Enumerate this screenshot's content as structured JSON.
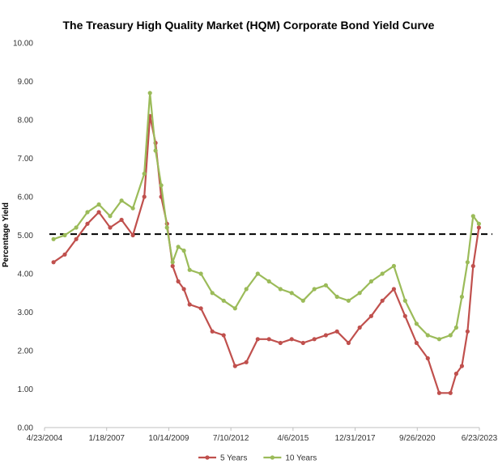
{
  "chart_data": {
    "type": "line",
    "title": "The Treasury High Quality Market (HQM) Corporate Bond Yield Curve",
    "xlabel": "",
    "ylabel": "Percentage Yield",
    "x_tick_labels": [
      "4/23/2004",
      "1/18/2007",
      "10/14/2009",
      "7/10/2012",
      "4/6/2015",
      "12/31/2017",
      "9/26/2020",
      "6/23/2023"
    ],
    "y_tick_labels": [
      "0.00",
      "1.00",
      "2.00",
      "3.00",
      "4.00",
      "5.00",
      "6.00",
      "7.00",
      "8.00",
      "9.00",
      "10.00"
    ],
    "xlim": [
      "2004-04-23",
      "2023-06-23"
    ],
    "ylim": [
      0,
      10
    ],
    "grid": false,
    "legend_position": "bottom",
    "reference_line": {
      "y": 5.03,
      "style": "dashed",
      "color": "#000000"
    },
    "x": [
      "2004-09",
      "2005-03",
      "2005-09",
      "2006-03",
      "2006-09",
      "2007-03",
      "2007-09",
      "2008-03",
      "2008-09",
      "2008-12",
      "2009-03",
      "2009-06",
      "2009-09",
      "2009-12",
      "2010-03",
      "2010-06",
      "2010-09",
      "2011-03",
      "2011-09",
      "2012-03",
      "2012-09",
      "2013-03",
      "2013-09",
      "2014-03",
      "2014-09",
      "2015-03",
      "2015-09",
      "2016-03",
      "2016-09",
      "2017-03",
      "2017-09",
      "2018-03",
      "2018-09",
      "2019-03",
      "2019-09",
      "2020-03",
      "2020-09",
      "2021-03",
      "2021-09",
      "2022-03",
      "2022-06",
      "2022-09",
      "2022-12",
      "2023-03",
      "2023-06"
    ],
    "series": [
      {
        "name": "5 Years",
        "color": "#c0504d",
        "values": [
          4.3,
          4.5,
          4.9,
          5.3,
          5.6,
          5.2,
          5.4,
          5.0,
          6.0,
          8.1,
          7.4,
          6.0,
          5.3,
          4.2,
          3.8,
          3.6,
          3.2,
          3.1,
          2.5,
          2.4,
          1.6,
          1.7,
          2.3,
          2.3,
          2.2,
          2.3,
          2.2,
          2.3,
          2.4,
          2.5,
          2.2,
          2.6,
          2.9,
          3.3,
          3.6,
          2.9,
          2.2,
          1.8,
          0.9,
          0.9,
          1.4,
          1.6,
          2.5,
          4.2,
          5.2
        ]
      },
      {
        "name": "10 Years",
        "color": "#9bbb59",
        "values": [
          4.9,
          5.0,
          5.2,
          5.6,
          5.8,
          5.5,
          5.9,
          5.7,
          6.6,
          8.7,
          7.2,
          6.3,
          5.2,
          4.3,
          4.7,
          4.6,
          4.1,
          4.0,
          3.5,
          3.3,
          3.1,
          3.6,
          4.0,
          3.8,
          3.6,
          3.5,
          3.3,
          3.6,
          3.7,
          3.4,
          3.3,
          3.5,
          3.8,
          4.0,
          4.2,
          3.3,
          2.7,
          2.4,
          2.3,
          2.4,
          2.6,
          3.4,
          4.3,
          5.5,
          5.3
        ]
      }
    ]
  }
}
